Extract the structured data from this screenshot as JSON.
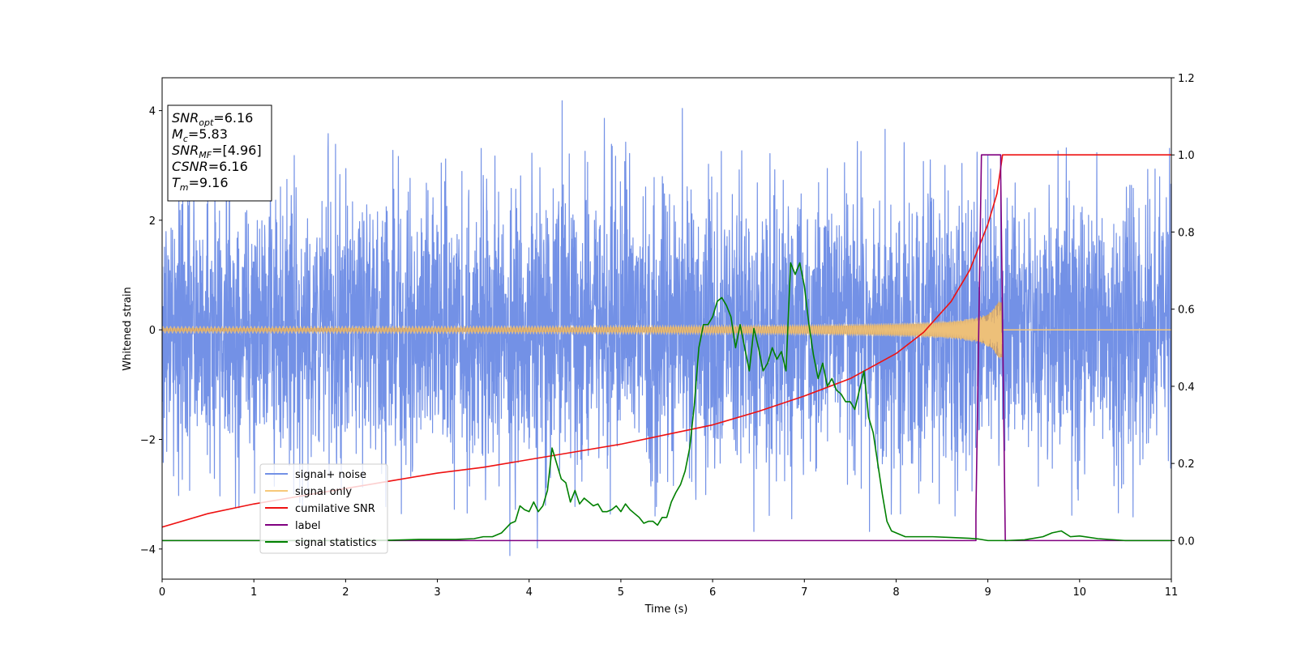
{
  "chart_data": {
    "type": "line",
    "title": "",
    "xlabel": "Time (s)",
    "ylabel": "Whitened strain",
    "xlim": [
      0,
      11
    ],
    "ylim": [
      -4.55,
      4.6
    ],
    "y2lim": [
      -0.1,
      1.2
    ],
    "x_ticks": [
      "0",
      "1",
      "2",
      "3",
      "4",
      "5",
      "6",
      "7",
      "8",
      "9",
      "10",
      "11"
    ],
    "y_ticks": [
      "−4",
      "−2",
      "0",
      "2",
      "4"
    ],
    "y2_ticks": [
      "0.0",
      "0.2",
      "0.4",
      "0.6",
      "0.8",
      "1.0",
      "1.2"
    ],
    "grid": false,
    "legend_position": "lower-left",
    "info_box": {
      "lines": [
        {
          "main": "SNR",
          "sub": "opt",
          "rest": "=6.16"
        },
        {
          "main": "M",
          "sub": "c",
          "rest": "=5.83"
        },
        {
          "main": "SNR",
          "sub": "MF",
          "rest": "=[4.96]"
        },
        {
          "main": "CSNR",
          "sub": "",
          "rest": "=6.16"
        },
        {
          "main": "T",
          "sub": "m",
          "rest": "=9.16"
        }
      ]
    },
    "series": [
      {
        "name": "signal+ noise",
        "color": "#7391e6",
        "axis": "left",
        "kind": "noise",
        "std": 1.25,
        "x_range": [
          0,
          11
        ],
        "note_spikes_max": 4.18,
        "spikes": [
          {
            "x": 4.36,
            "y": 4.18
          },
          {
            "x": 5.67,
            "y": 4.04
          },
          {
            "x": 4.82,
            "y": 3.86
          },
          {
            "x": 7.88,
            "y": 3.66
          },
          {
            "x": 1.81,
            "y": 3.58
          },
          {
            "x": 3.79,
            "y": -4.12
          },
          {
            "x": 4.09,
            "y": -3.98
          },
          {
            "x": 7.71,
            "y": -3.68
          },
          {
            "x": 6.45,
            "y": -3.68
          }
        ]
      },
      {
        "name": "signal only",
        "color": "#f7c97a",
        "axis": "left",
        "kind": "chirp",
        "amplitude_start": 0.03,
        "amplitude_end": 0.5,
        "merger_time": 9.16
      },
      {
        "name": "cumilative SNR",
        "color": "#ee1111",
        "axis": "right",
        "kind": "line",
        "x": [
          0,
          0.5,
          1,
          1.5,
          2,
          2.5,
          3,
          3.5,
          4,
          4.5,
          5,
          5.5,
          6,
          6.5,
          7,
          7.5,
          8,
          8.3,
          8.6,
          8.8,
          9.0,
          9.1,
          9.16,
          9.5,
          10,
          11
        ],
        "y": [
          0.035,
          0.07,
          0.095,
          0.115,
          0.135,
          0.155,
          0.175,
          0.19,
          0.21,
          0.23,
          0.25,
          0.275,
          0.3,
          0.335,
          0.375,
          0.42,
          0.485,
          0.54,
          0.62,
          0.7,
          0.82,
          0.9,
          1.0,
          1.0,
          1.0,
          1.0
        ]
      },
      {
        "name": "label",
        "color": "#800080",
        "axis": "right",
        "kind": "line",
        "x": [
          0,
          8.87,
          8.87,
          8.93,
          8.93,
          9.14,
          9.14,
          9.19,
          9.19,
          11
        ],
        "y": [
          0,
          0,
          0.07,
          1.0,
          1.0,
          1.0,
          0.95,
          0.0,
          0.0,
          0.0
        ]
      },
      {
        "name": "signal statistics",
        "color": "#008000",
        "axis": "right",
        "kind": "line",
        "x": [
          0,
          0.5,
          1,
          1.5,
          2,
          2.5,
          2.8,
          3.2,
          3.4,
          3.5,
          3.6,
          3.7,
          3.8,
          3.85,
          3.9,
          3.95,
          4.0,
          4.05,
          4.1,
          4.15,
          4.2,
          4.25,
          4.3,
          4.35,
          4.4,
          4.45,
          4.5,
          4.55,
          4.6,
          4.65,
          4.7,
          4.75,
          4.8,
          4.85,
          4.9,
          4.95,
          5.0,
          5.05,
          5.1,
          5.15,
          5.2,
          5.25,
          5.3,
          5.35,
          5.4,
          5.45,
          5.5,
          5.55,
          5.6,
          5.65,
          5.7,
          5.75,
          5.8,
          5.85,
          5.9,
          5.95,
          6.0,
          6.05,
          6.1,
          6.15,
          6.2,
          6.25,
          6.3,
          6.35,
          6.4,
          6.45,
          6.5,
          6.55,
          6.6,
          6.65,
          6.7,
          6.75,
          6.8,
          6.85,
          6.9,
          6.95,
          7.0,
          7.05,
          7.1,
          7.15,
          7.2,
          7.25,
          7.3,
          7.35,
          7.4,
          7.45,
          7.5,
          7.55,
          7.6,
          7.65,
          7.7,
          7.75,
          7.8,
          7.85,
          7.9,
          7.95,
          8.0,
          8.05,
          8.1,
          8.15,
          8.2,
          8.3,
          8.4,
          8.6,
          8.8,
          8.9,
          9.0,
          9.2,
          9.4,
          9.6,
          9.7,
          9.8,
          9.9,
          10.0,
          10.2,
          10.5,
          11
        ],
        "y": [
          0.0,
          0.0,
          0.0,
          0.0,
          0.0,
          0.001,
          0.003,
          0.003,
          0.005,
          0.01,
          0.01,
          0.02,
          0.045,
          0.05,
          0.09,
          0.08,
          0.075,
          0.1,
          0.075,
          0.09,
          0.13,
          0.24,
          0.2,
          0.16,
          0.15,
          0.1,
          0.13,
          0.095,
          0.11,
          0.1,
          0.09,
          0.095,
          0.075,
          0.075,
          0.08,
          0.09,
          0.075,
          0.095,
          0.08,
          0.07,
          0.06,
          0.045,
          0.05,
          0.05,
          0.04,
          0.06,
          0.06,
          0.1,
          0.125,
          0.145,
          0.18,
          0.24,
          0.35,
          0.5,
          0.56,
          0.56,
          0.58,
          0.62,
          0.63,
          0.61,
          0.58,
          0.5,
          0.56,
          0.5,
          0.44,
          0.55,
          0.5,
          0.44,
          0.46,
          0.5,
          0.47,
          0.49,
          0.44,
          0.72,
          0.69,
          0.72,
          0.66,
          0.56,
          0.48,
          0.42,
          0.46,
          0.4,
          0.42,
          0.39,
          0.38,
          0.36,
          0.36,
          0.34,
          0.39,
          0.44,
          0.32,
          0.28,
          0.2,
          0.12,
          0.05,
          0.025,
          0.02,
          0.015,
          0.01,
          0.01,
          0.01,
          0.01,
          0.01,
          0.008,
          0.006,
          0.004,
          0.0,
          0.0,
          0.002,
          0.01,
          0.02,
          0.025,
          0.01,
          0.012,
          0.005,
          0.0,
          0.0
        ]
      }
    ]
  }
}
